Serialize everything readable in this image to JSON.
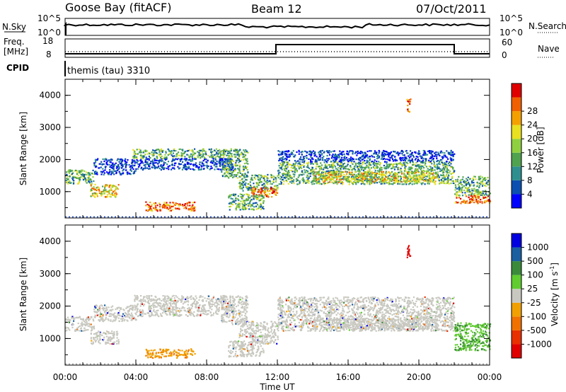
{
  "header": {
    "station": "Goose Bay (fitACF)",
    "beam": "Beam 12",
    "date": "07/Oct/2011"
  },
  "nsky_panel": {
    "left_label": "N.Sky",
    "right_label": "N.Search",
    "left_ticks": [
      "10^5",
      "10^0"
    ],
    "right_ticks": [
      "10^5",
      "10^0"
    ]
  },
  "freq_panel": {
    "left_label_1": "Freq.",
    "left_label_2": "[MHz]",
    "right_label": "Nave",
    "left_ticks": [
      "18",
      "8"
    ],
    "right_ticks": [
      "60",
      "0"
    ]
  },
  "cpid": {
    "label": "CPID",
    "value": "themis (tau) 3310"
  },
  "chart_data": [
    {
      "type": "heatmap",
      "name": "power",
      "ylabel": "Slant Range [km]",
      "xlabel": "Time UT",
      "x_ticks": [
        "00:00",
        "04:00",
        "08:00",
        "12:00",
        "16:00",
        "20:00",
        "00:00"
      ],
      "y_ticks": [
        "1000",
        "2000",
        "3000",
        "4000"
      ],
      "ylim": [
        180,
        4500
      ],
      "xlim_hours": [
        0,
        24
      ],
      "colorbar": {
        "label": "Power [dB]",
        "ticks": [
          "4",
          "8",
          "12",
          "16",
          "20",
          "24",
          "28"
        ],
        "colors": [
          "#0000ff",
          "#0b4fb0",
          "#2f8f8f",
          "#4fa34f",
          "#8fd040",
          "#e8e020",
          "#f4a000",
          "#f06000",
          "#e00000"
        ]
      }
    },
    {
      "type": "heatmap",
      "name": "velocity",
      "ylabel": "Slant Range [km]",
      "xlabel": "Time UT",
      "x_ticks": [
        "00:00",
        "04:00",
        "08:00",
        "12:00",
        "16:00",
        "20:00",
        "00:00"
      ],
      "y_ticks": [
        "1000",
        "2000",
        "3000",
        "4000"
      ],
      "ylim": [
        180,
        4500
      ],
      "xlim_hours": [
        0,
        24
      ],
      "colorbar": {
        "label": "Velocity [m s",
        "label_sup": "-1",
        "label_end": "]",
        "ticks": [
          "1000",
          "500",
          "100",
          "25",
          "-25",
          "-100",
          "-500",
          "-1000"
        ],
        "colors": [
          "#0000e0",
          "#1a5fa0",
          "#3a8a3a",
          "#60cc30",
          "#c8c8c0",
          "#f0a000",
          "#f07000",
          "#e83000",
          "#e00000"
        ]
      }
    }
  ],
  "regions": [
    {
      "t0": 0.0,
      "t1": 1.6,
      "r0": 1250,
      "r1": 1700,
      "kind": "mid"
    },
    {
      "t0": 1.4,
      "t1": 3.0,
      "r0": 850,
      "r1": 1250,
      "kind": "strong"
    },
    {
      "t0": 1.6,
      "t1": 4.0,
      "r0": 1550,
      "r1": 2050,
      "kind": "weak"
    },
    {
      "t0": 3.8,
      "t1": 9.0,
      "r0": 2050,
      "r1": 2350,
      "kind": "mid"
    },
    {
      "t0": 4.0,
      "t1": 9.5,
      "r0": 1700,
      "r1": 2050,
      "kind": "weak"
    },
    {
      "t0": 8.8,
      "t1": 10.3,
      "r0": 1450,
      "r1": 2350,
      "kind": "mid"
    },
    {
      "t0": 9.8,
      "t1": 12.0,
      "r0": 1050,
      "r1": 1550,
      "kind": "mid"
    },
    {
      "t0": 10.5,
      "t1": 12.0,
      "r0": 850,
      "r1": 1150,
      "kind": "hot"
    },
    {
      "t0": 12.0,
      "t1": 22.0,
      "r0": 1250,
      "r1": 1950,
      "kind": "mid"
    },
    {
      "t0": 12.0,
      "t1": 22.0,
      "r0": 1950,
      "r1": 2300,
      "kind": "weak"
    },
    {
      "t0": 14.0,
      "t1": 21.0,
      "r0": 1300,
      "r1": 1650,
      "kind": "strong"
    },
    {
      "t0": 22.0,
      "t1": 24.0,
      "r0": 900,
      "r1": 1500,
      "kind": "mid"
    },
    {
      "t0": 22.0,
      "t1": 24.0,
      "r0": 650,
      "r1": 900,
      "kind": "hot"
    },
    {
      "t0": 4.5,
      "t1": 7.3,
      "r0": 420,
      "r1": 700,
      "kind": "hot"
    },
    {
      "t0": 9.2,
      "t1": 11.2,
      "r0": 450,
      "r1": 950,
      "kind": "mid"
    },
    {
      "t0": 19.3,
      "t1": 19.5,
      "r0": 3500,
      "r1": 3950,
      "kind": "hot"
    }
  ]
}
